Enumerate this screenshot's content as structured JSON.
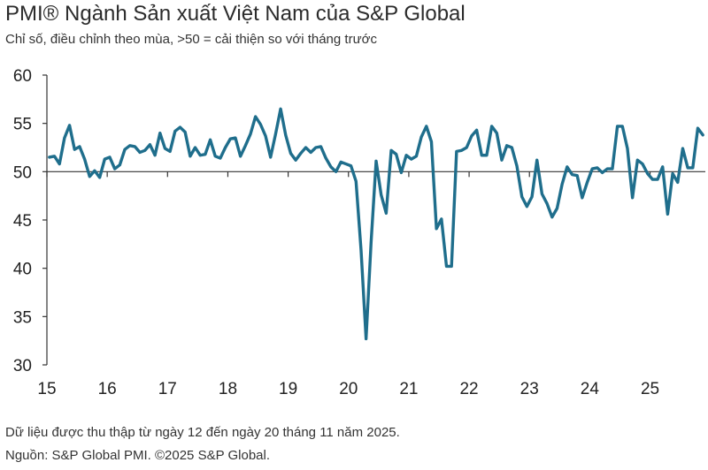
{
  "header": {
    "title": "PMI® Ngành Sản xuất Việt Nam của S&P Global",
    "subtitle": "Chỉ số, điều chỉnh theo mùa, >50 = cải thiện so với tháng trước"
  },
  "footer": {
    "note": "Dữ liệu được thu thập từ ngày 12 đến ngày 20 tháng 11 năm 2025.",
    "source": "Nguồn: S&P Global PMI. ©2025 S&P Global."
  },
  "chart_data": {
    "type": "line",
    "title": "PMI® Ngành Sản xuất Việt Nam của S&P Global",
    "subtitle": "Chỉ số, điều chỉnh theo mùa, >50 = cải thiện so với tháng trước",
    "xlabel": "",
    "ylabel": "",
    "ylim": [
      30,
      60
    ],
    "yticks": [
      30,
      35,
      40,
      45,
      50,
      55,
      60
    ],
    "xtick_labels": [
      "15",
      "16",
      "17",
      "18",
      "19",
      "20",
      "21",
      "22",
      "23",
      "24",
      "25"
    ],
    "x_start": "2015-01",
    "x_end": "2025-11",
    "grid": false,
    "line_color": "#1f6e8c",
    "series": [
      {
        "values": [
          51.5,
          51.6,
          50.8,
          53.5,
          54.8,
          52.3,
          52.6,
          51.3,
          49.5,
          50.1,
          49.4,
          51.3,
          51.5,
          50.3,
          50.7,
          52.3,
          52.7,
          52.6,
          52.0,
          52.2,
          52.8,
          51.7,
          54.0,
          52.4,
          52.1,
          54.2,
          54.6,
          54.1,
          51.6,
          52.5,
          51.7,
          51.8,
          53.3,
          51.6,
          51.4,
          52.5,
          53.4,
          53.5,
          51.6,
          52.7,
          53.9,
          55.7,
          54.9,
          53.7,
          51.5,
          53.9,
          56.5,
          53.8,
          51.9,
          51.2,
          51.9,
          52.5,
          52.0,
          52.5,
          52.6,
          51.4,
          50.5,
          50.0,
          51.0,
          50.8,
          50.6,
          49.0,
          41.9,
          32.7,
          42.7,
          51.1,
          47.6,
          45.7,
          52.2,
          51.8,
          49.9,
          51.7,
          51.3,
          51.6,
          53.6,
          54.7,
          53.1,
          44.1,
          45.1,
          40.2,
          40.2,
          52.1,
          52.2,
          52.5,
          53.7,
          54.3,
          51.7,
          51.7,
          54.7,
          54.0,
          51.2,
          52.7,
          52.5,
          50.6,
          47.4,
          46.4,
          47.4,
          51.2,
          47.7,
          46.7,
          45.3,
          46.2,
          48.7,
          50.5,
          49.7,
          49.6,
          47.3,
          48.9,
          50.3,
          50.4,
          49.9,
          50.3,
          50.3,
          54.7,
          54.7,
          52.4,
          47.3,
          51.2,
          50.8,
          49.8,
          49.2,
          49.2,
          50.5,
          45.6,
          49.8,
          48.9,
          52.4,
          50.4,
          50.4,
          54.5,
          53.8
        ]
      }
    ]
  }
}
